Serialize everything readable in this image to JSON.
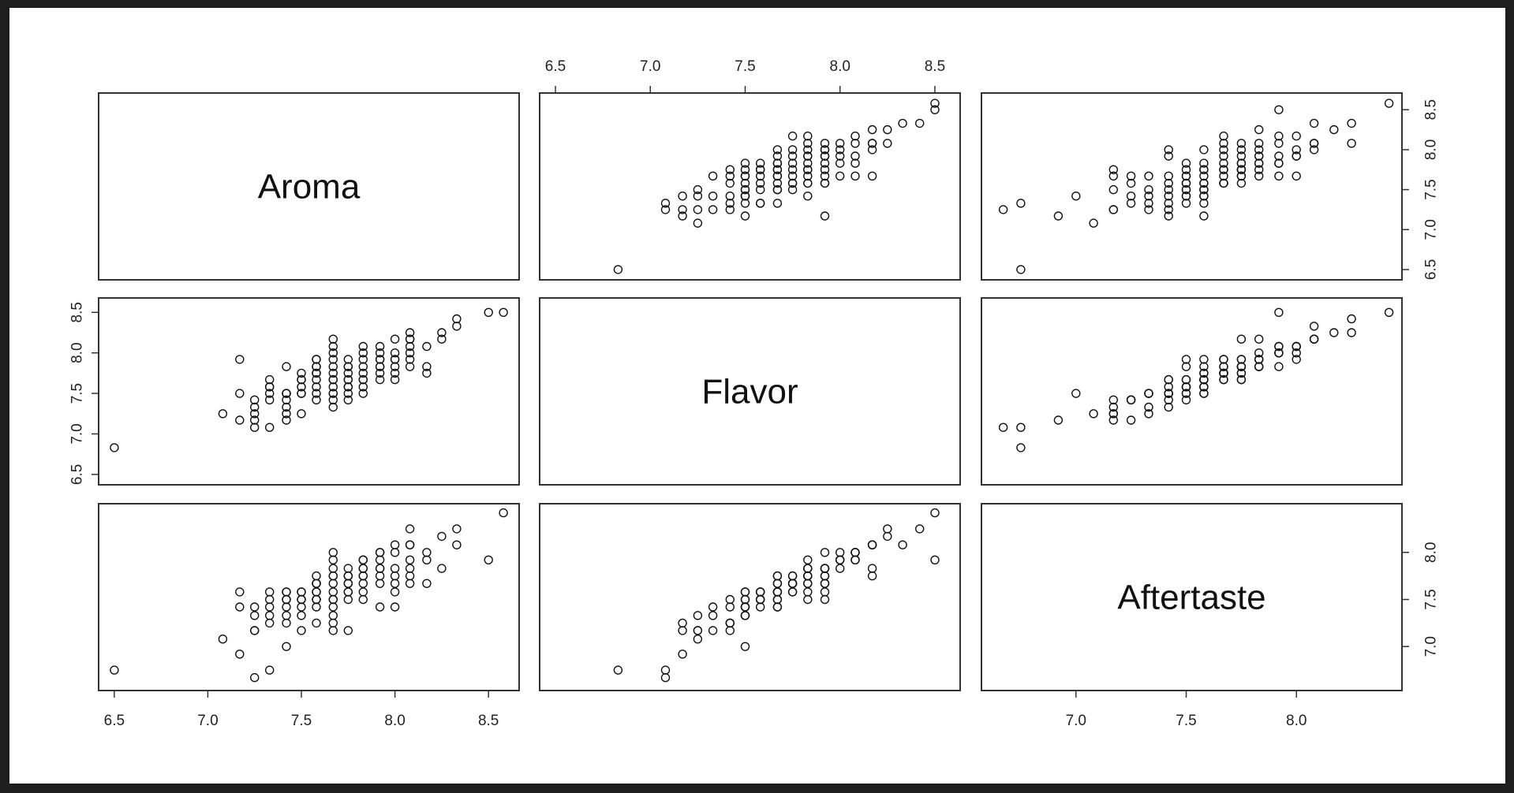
{
  "chart_data": {
    "type": "scatter",
    "variables": [
      "Aroma",
      "Flavor",
      "Aftertaste"
    ],
    "ranges": {
      "Aroma": [
        6.45,
        8.63
      ],
      "Flavor": [
        6.45,
        8.6
      ],
      "Aftertaste": [
        6.6,
        8.45
      ]
    },
    "axis_ticks": {
      "Aroma": [
        "6.5",
        "7.0",
        "7.5",
        "8.0",
        "8.5"
      ],
      "Flavor": [
        "6.5",
        "7.0",
        "7.5",
        "8.0",
        "8.5"
      ],
      "Aftertaste": [
        "7.0",
        "7.5",
        "8.0"
      ]
    },
    "grid": false,
    "legend": "none",
    "points": {
      "Aroma": [
        6.5,
        7.08,
        7.17,
        7.17,
        7.17,
        7.25,
        7.25,
        7.25,
        7.25,
        7.25,
        7.33,
        7.33,
        7.33,
        7.33,
        7.33,
        7.33,
        7.42,
        7.42,
        7.42,
        7.42,
        7.42,
        7.42,
        7.42,
        7.42,
        7.5,
        7.5,
        7.5,
        7.5,
        7.5,
        7.5,
        7.5,
        7.58,
        7.58,
        7.58,
        7.58,
        7.58,
        7.58,
        7.58,
        7.58,
        7.58,
        7.58,
        7.67,
        7.67,
        7.67,
        7.67,
        7.67,
        7.67,
        7.67,
        7.67,
        7.67,
        7.67,
        7.67,
        7.67,
        7.67,
        7.75,
        7.75,
        7.75,
        7.75,
        7.75,
        7.75,
        7.75,
        7.75,
        7.75,
        7.75,
        7.83,
        7.83,
        7.83,
        7.83,
        7.83,
        7.83,
        7.83,
        7.83,
        7.83,
        7.92,
        7.92,
        7.92,
        7.92,
        7.92,
        7.92,
        7.92,
        7.92,
        8.0,
        8.0,
        8.0,
        8.0,
        8.0,
        8.0,
        8.0,
        8.08,
        8.08,
        8.08,
        8.08,
        8.08,
        8.08,
        8.08,
        8.17,
        8.17,
        8.17,
        8.25,
        8.25,
        8.33,
        8.33,
        8.5,
        8.58
      ],
      "Flavor": [
        6.83,
        7.25,
        7.17,
        7.5,
        7.92,
        7.08,
        7.17,
        7.25,
        7.33,
        7.42,
        7.08,
        7.42,
        7.5,
        7.58,
        7.58,
        7.67,
        7.17,
        7.25,
        7.33,
        7.42,
        7.5,
        7.5,
        7.5,
        7.83,
        7.25,
        7.5,
        7.5,
        7.58,
        7.67,
        7.67,
        7.75,
        7.42,
        7.5,
        7.58,
        7.67,
        7.75,
        7.75,
        7.83,
        7.83,
        7.92,
        7.92,
        7.33,
        7.42,
        7.5,
        7.5,
        7.58,
        7.67,
        7.67,
        7.75,
        7.83,
        7.92,
        8.0,
        8.08,
        8.17,
        7.42,
        7.5,
        7.58,
        7.58,
        7.67,
        7.67,
        7.75,
        7.83,
        7.83,
        7.92,
        7.5,
        7.58,
        7.67,
        7.67,
        7.75,
        7.83,
        7.92,
        8.0,
        8.08,
        7.67,
        7.75,
        7.83,
        7.83,
        7.92,
        7.92,
        8.0,
        8.08,
        7.67,
        7.75,
        7.83,
        7.92,
        7.92,
        8.0,
        8.17,
        7.83,
        7.92,
        8.0,
        8.08,
        8.17,
        8.17,
        8.25,
        7.75,
        7.83,
        8.08,
        8.17,
        8.25,
        8.33,
        8.42,
        8.5,
        8.5
      ],
      "Aftertaste": [
        6.75,
        7.08,
        6.92,
        7.42,
        7.58,
        6.67,
        7.17,
        7.17,
        7.33,
        7.42,
        6.75,
        7.25,
        7.33,
        7.42,
        7.5,
        7.58,
        7.25,
        7.33,
        7.42,
        7.5,
        7.58,
        7.58,
        7.0,
        7.5,
        7.17,
        7.33,
        7.42,
        7.5,
        7.5,
        7.58,
        7.58,
        7.25,
        7.42,
        7.5,
        7.58,
        7.67,
        7.67,
        7.75,
        7.58,
        7.67,
        7.5,
        7.17,
        7.25,
        7.33,
        7.42,
        7.5,
        7.5,
        7.58,
        7.67,
        7.75,
        7.83,
        7.92,
        8.0,
        7.75,
        7.17,
        7.5,
        7.58,
        7.58,
        7.75,
        7.67,
        7.75,
        7.83,
        7.75,
        7.67,
        7.5,
        7.58,
        7.67,
        7.75,
        7.75,
        7.83,
        7.83,
        7.92,
        7.92,
        7.42,
        7.67,
        7.75,
        7.83,
        7.83,
        8.0,
        7.92,
        8.0,
        7.42,
        7.58,
        7.67,
        7.75,
        7.83,
        8.0,
        8.08,
        7.67,
        7.75,
        7.83,
        7.92,
        8.08,
        8.08,
        8.25,
        7.67,
        7.92,
        8.0,
        7.83,
        8.17,
        8.08,
        8.25,
        7.92,
        8.42
      ]
    }
  }
}
